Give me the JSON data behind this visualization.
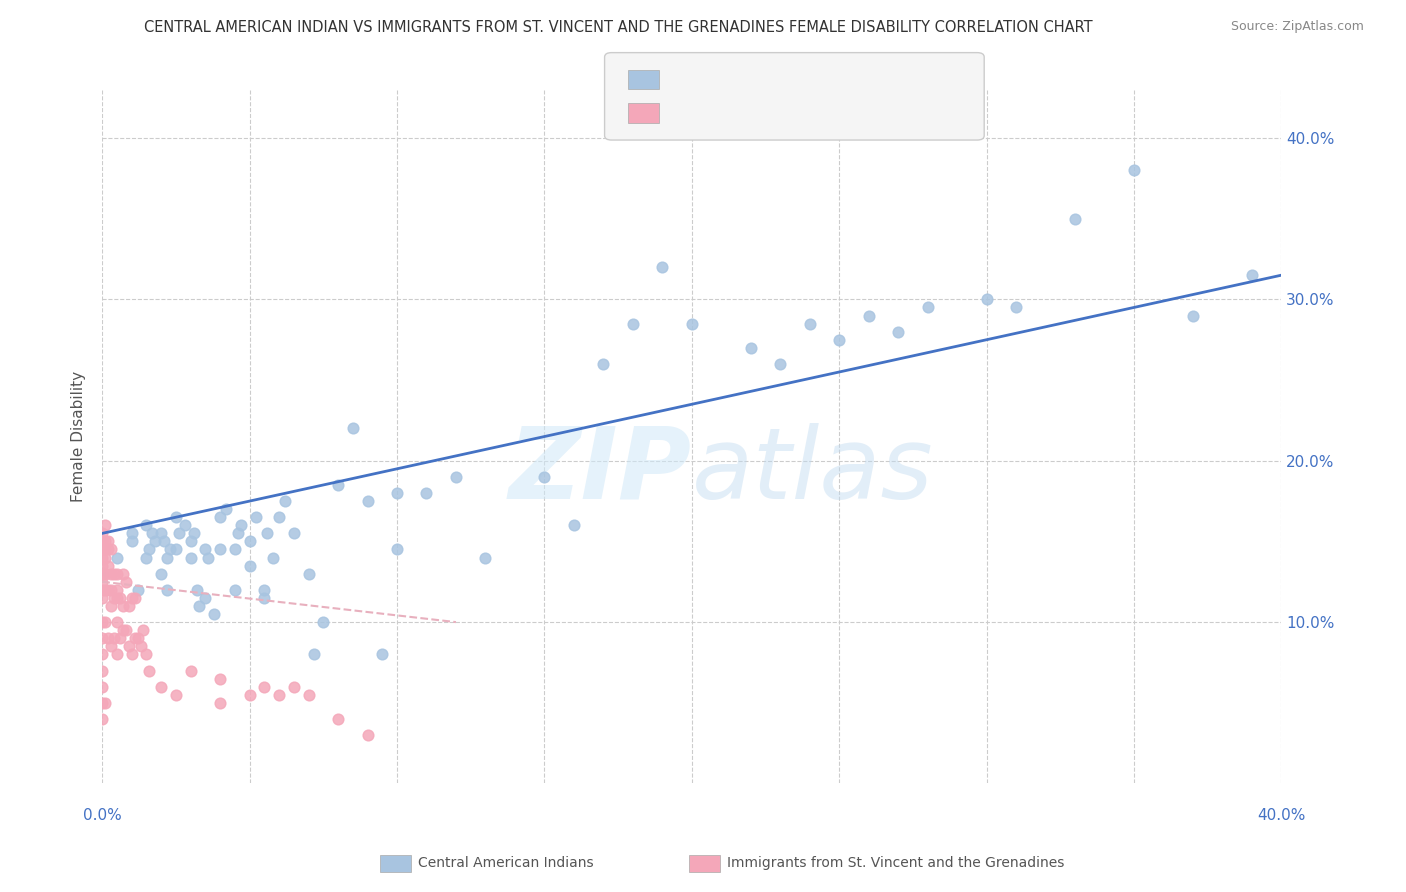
{
  "title": "CENTRAL AMERICAN INDIAN VS IMMIGRANTS FROM ST. VINCENT AND THE GRENADINES FEMALE DISABILITY CORRELATION CHART",
  "source": "Source: ZipAtlas.com",
  "ylabel": "Female Disability",
  "ytick_values": [
    0.1,
    0.2,
    0.3,
    0.4
  ],
  "ytick_labels": [
    "10.0%",
    "20.0%",
    "30.0%",
    "40.0%"
  ],
  "xrange": [
    0.0,
    0.4
  ],
  "yrange": [
    0.0,
    0.43
  ],
  "color_blue": "#a8c4e0",
  "color_pink": "#f4a7b9",
  "line_blue": "#4472c4",
  "line_pink_dash": "#e8b0be",
  "watermark_zip": "ZIP",
  "watermark_atlas": "atlas",
  "legend_label1": "Central American Indians",
  "legend_label2": "Immigrants from St. Vincent and the Grenadines",
  "blue_scatter_x": [
    0.0,
    0.005,
    0.01,
    0.01,
    0.012,
    0.015,
    0.015,
    0.016,
    0.017,
    0.018,
    0.02,
    0.02,
    0.021,
    0.022,
    0.022,
    0.023,
    0.025,
    0.025,
    0.026,
    0.028,
    0.03,
    0.03,
    0.031,
    0.032,
    0.033,
    0.035,
    0.035,
    0.036,
    0.038,
    0.04,
    0.04,
    0.042,
    0.045,
    0.045,
    0.046,
    0.047,
    0.05,
    0.05,
    0.052,
    0.055,
    0.055,
    0.056,
    0.058,
    0.06,
    0.062,
    0.065,
    0.07,
    0.072,
    0.075,
    0.08,
    0.085,
    0.09,
    0.095,
    0.1,
    0.1,
    0.11,
    0.12,
    0.13,
    0.15,
    0.16,
    0.17,
    0.18,
    0.19,
    0.2,
    0.22,
    0.23,
    0.24,
    0.25,
    0.26,
    0.27,
    0.28,
    0.3,
    0.31,
    0.33,
    0.35,
    0.37,
    0.39
  ],
  "blue_scatter_y": [
    0.13,
    0.14,
    0.15,
    0.155,
    0.12,
    0.14,
    0.16,
    0.145,
    0.155,
    0.15,
    0.13,
    0.155,
    0.15,
    0.12,
    0.14,
    0.145,
    0.165,
    0.145,
    0.155,
    0.16,
    0.14,
    0.15,
    0.155,
    0.12,
    0.11,
    0.115,
    0.145,
    0.14,
    0.105,
    0.145,
    0.165,
    0.17,
    0.12,
    0.145,
    0.155,
    0.16,
    0.135,
    0.15,
    0.165,
    0.12,
    0.115,
    0.155,
    0.14,
    0.165,
    0.175,
    0.155,
    0.13,
    0.08,
    0.1,
    0.185,
    0.22,
    0.175,
    0.08,
    0.145,
    0.18,
    0.18,
    0.19,
    0.14,
    0.19,
    0.16,
    0.26,
    0.285,
    0.32,
    0.285,
    0.27,
    0.26,
    0.285,
    0.275,
    0.29,
    0.28,
    0.295,
    0.3,
    0.295,
    0.35,
    0.38,
    0.29,
    0.315
  ],
  "pink_scatter_x": [
    0.0,
    0.0,
    0.0,
    0.0,
    0.0,
    0.0,
    0.0,
    0.0,
    0.0,
    0.0,
    0.0,
    0.0,
    0.0,
    0.0,
    0.0,
    0.0,
    0.001,
    0.001,
    0.001,
    0.001,
    0.001,
    0.001,
    0.001,
    0.001,
    0.002,
    0.002,
    0.002,
    0.002,
    0.002,
    0.003,
    0.003,
    0.003,
    0.003,
    0.003,
    0.004,
    0.004,
    0.004,
    0.005,
    0.005,
    0.005,
    0.005,
    0.005,
    0.006,
    0.006,
    0.007,
    0.007,
    0.007,
    0.008,
    0.008,
    0.009,
    0.009,
    0.01,
    0.01,
    0.011,
    0.011,
    0.012,
    0.013,
    0.014,
    0.015,
    0.016,
    0.02,
    0.025,
    0.03,
    0.04,
    0.04,
    0.05,
    0.055,
    0.06,
    0.065,
    0.07,
    0.08,
    0.09
  ],
  "pink_scatter_y": [
    0.04,
    0.05,
    0.06,
    0.07,
    0.08,
    0.09,
    0.1,
    0.115,
    0.12,
    0.125,
    0.13,
    0.135,
    0.14,
    0.145,
    0.15,
    0.155,
    0.05,
    0.1,
    0.12,
    0.13,
    0.14,
    0.145,
    0.15,
    0.16,
    0.09,
    0.12,
    0.135,
    0.145,
    0.15,
    0.085,
    0.11,
    0.12,
    0.13,
    0.145,
    0.09,
    0.115,
    0.13,
    0.08,
    0.1,
    0.115,
    0.12,
    0.13,
    0.09,
    0.115,
    0.095,
    0.11,
    0.13,
    0.095,
    0.125,
    0.085,
    0.11,
    0.08,
    0.115,
    0.09,
    0.115,
    0.09,
    0.085,
    0.095,
    0.08,
    0.07,
    0.06,
    0.055,
    0.07,
    0.05,
    0.065,
    0.055,
    0.06,
    0.055,
    0.06,
    0.055,
    0.04,
    0.03
  ],
  "blue_line_x": [
    0.0,
    0.4
  ],
  "blue_line_y": [
    0.155,
    0.315
  ],
  "pink_line_x": [
    0.0,
    0.12
  ],
  "pink_line_y": [
    0.125,
    0.1
  ]
}
